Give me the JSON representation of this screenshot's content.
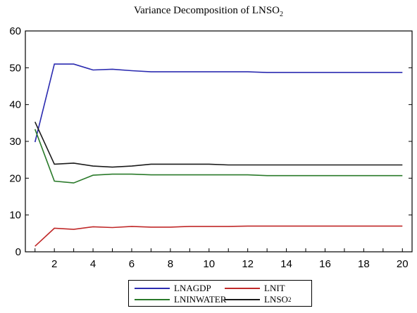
{
  "title_main": "Variance Decomposition of LNSO",
  "title_sub": "2",
  "chart_data": {
    "type": "line",
    "title": "Variance Decomposition of LNSO2",
    "xlabel": "",
    "ylabel": "",
    "xlim": [
      0.5,
      20.5
    ],
    "ylim": [
      0,
      60
    ],
    "xticks": [
      2,
      4,
      6,
      8,
      10,
      12,
      14,
      16,
      18,
      20
    ],
    "yticks": [
      0,
      10,
      20,
      30,
      40,
      50,
      60
    ],
    "grid": false,
    "legend_position": "bottom",
    "x": [
      1,
      2,
      3,
      4,
      5,
      6,
      7,
      8,
      9,
      10,
      11,
      12,
      13,
      14,
      15,
      16,
      17,
      18,
      19,
      20
    ],
    "series": [
      {
        "name": "LNAGDP",
        "color": "#2b2bb0",
        "values": [
          29.8,
          51.0,
          51.0,
          49.4,
          49.6,
          49.2,
          48.9,
          48.9,
          48.9,
          48.9,
          48.9,
          48.9,
          48.7,
          48.7,
          48.7,
          48.7,
          48.7,
          48.7,
          48.7,
          48.7
        ]
      },
      {
        "name": "LNIT",
        "color": "#c02828",
        "values": [
          1.5,
          6.4,
          6.1,
          6.8,
          6.6,
          6.9,
          6.7,
          6.7,
          6.9,
          6.9,
          6.9,
          7.0,
          7.0,
          7.0,
          7.0,
          7.0,
          7.0,
          7.0,
          7.0,
          7.0
        ]
      },
      {
        "name": "LNINWATER",
        "color": "#2a7a2a",
        "values": [
          33.3,
          19.2,
          18.7,
          20.8,
          21.1,
          21.1,
          20.9,
          20.9,
          20.9,
          20.9,
          20.9,
          20.9,
          20.7,
          20.7,
          20.7,
          20.7,
          20.7,
          20.7,
          20.7,
          20.7
        ]
      },
      {
        "name": "LNSO2",
        "color": "#1a1a1a",
        "values": [
          35.3,
          23.8,
          24.1,
          23.3,
          23.0,
          23.3,
          23.8,
          23.8,
          23.8,
          23.8,
          23.6,
          23.6,
          23.6,
          23.6,
          23.6,
          23.6,
          23.6,
          23.6,
          23.6,
          23.6
        ]
      }
    ]
  },
  "legend": {
    "items": [
      {
        "label": "LNAGDP",
        "sub": "",
        "color": "#2b2bb0"
      },
      {
        "label": "LNIT",
        "sub": "",
        "color": "#c02828"
      },
      {
        "label": "LNINWATER",
        "sub": "",
        "color": "#2a7a2a"
      },
      {
        "label": "LNSO",
        "sub": "2",
        "color": "#1a1a1a"
      }
    ]
  }
}
